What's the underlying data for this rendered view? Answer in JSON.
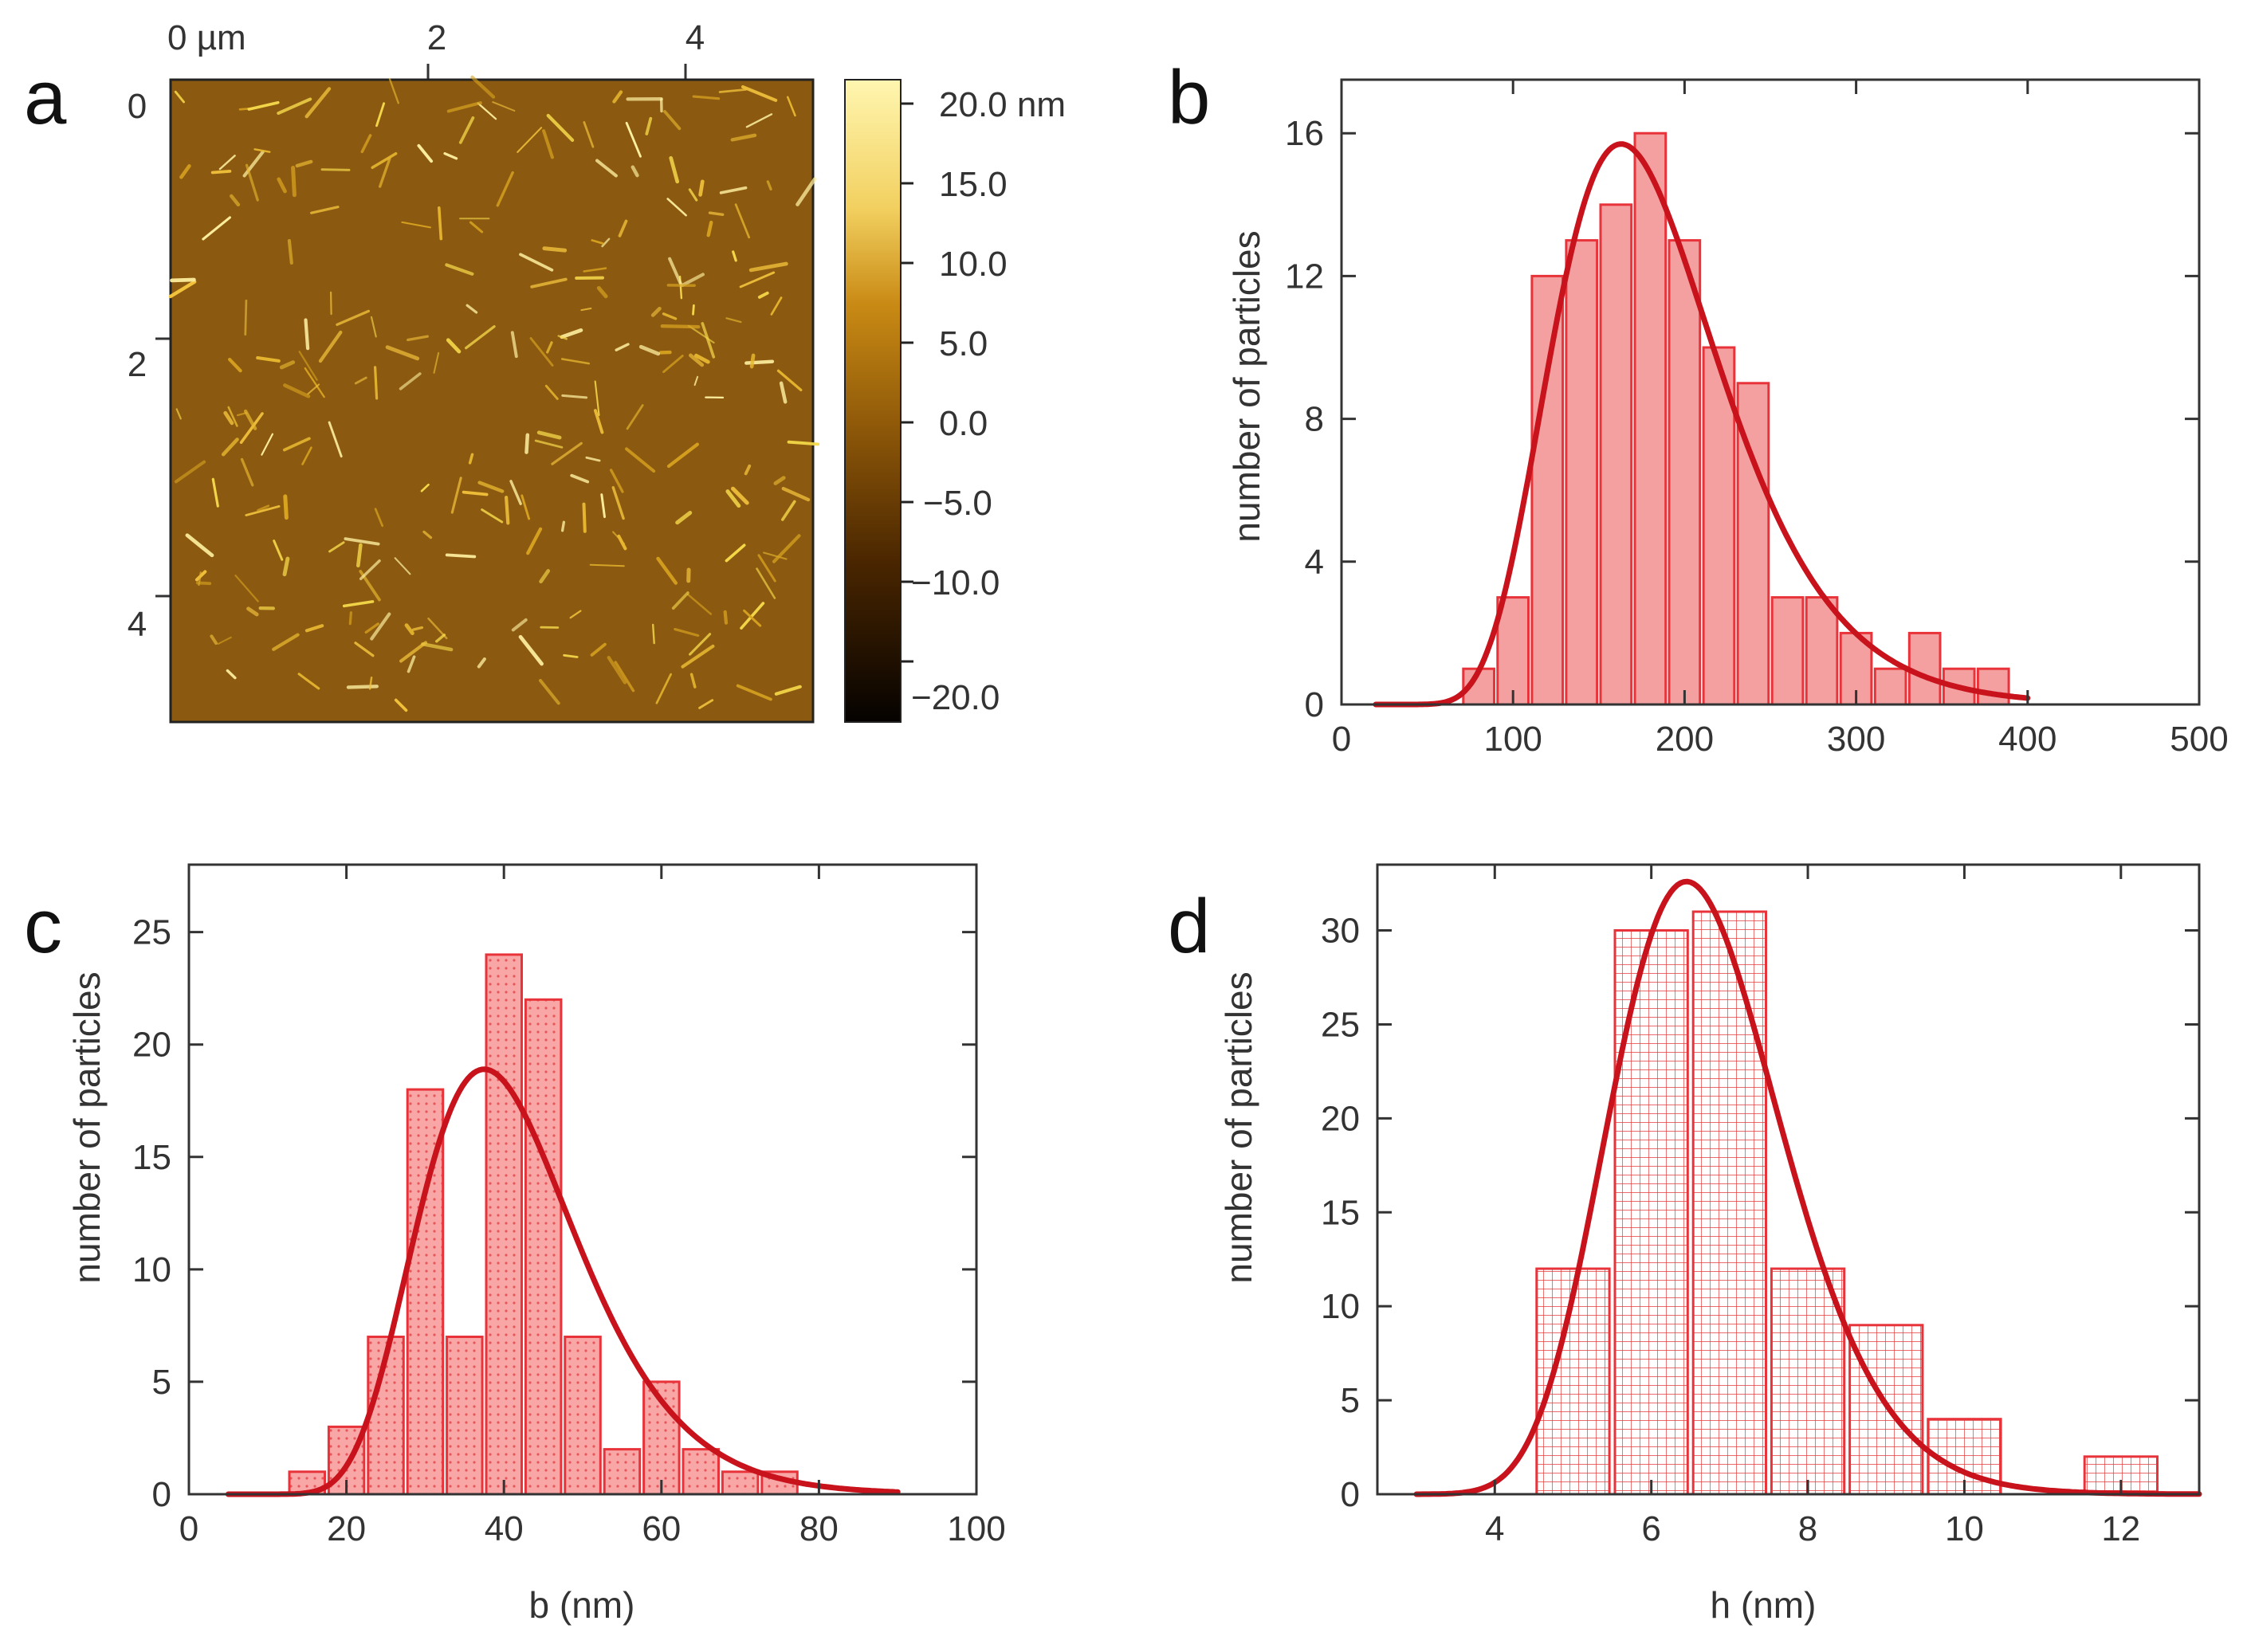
{
  "colors": {
    "bar_fill": "#f4a0a0",
    "bar_stroke": "#e8333a",
    "curve": "#c8121c",
    "grid_line": "#e23a3a",
    "afm_base": "#8b5a10",
    "axis": "#333333"
  },
  "panel_a": {
    "letter": "a",
    "x_ticks": [
      "0 µm",
      "2",
      "4"
    ],
    "y_ticks": [
      "0",
      "2",
      "4"
    ],
    "colorbar_labels": [
      "20.0 nm",
      "15.0",
      "10.0",
      "5.0",
      "0.0",
      "−5.0",
      "−10.0",
      "−20.0"
    ],
    "colorbar_range_nm": [
      -20,
      20
    ],
    "scan_size_um": 5
  },
  "chart_data": [
    {
      "panel": "b",
      "type": "bar",
      "title": "",
      "xlabel": "",
      "ylabel": "number of particles",
      "xlim": [
        0,
        500
      ],
      "ylim": [
        0,
        17.5
      ],
      "x_ticks": [
        0,
        100,
        200,
        300,
        400,
        500
      ],
      "y_ticks": [
        0,
        4,
        8,
        12,
        16
      ],
      "bin_width": 20,
      "bin_centers": [
        80,
        100,
        120,
        140,
        160,
        180,
        200,
        220,
        240,
        260,
        280,
        300,
        320,
        340,
        360,
        380
      ],
      "values": [
        1,
        3,
        12,
        13,
        14,
        16,
        13,
        10,
        9,
        3,
        3,
        2,
        1,
        2,
        1,
        1
      ],
      "fill": "solid",
      "fit": {
        "type": "lognormal",
        "x_range": [
          20,
          400
        ],
        "peak_x": 163,
        "peak_y": 15.7,
        "sigma": 0.3
      }
    },
    {
      "panel": "c",
      "type": "bar",
      "title": "",
      "xlabel": "b (nm)",
      "ylabel": "number of particles",
      "xlim": [
        0,
        100
      ],
      "ylim": [
        0,
        28
      ],
      "x_ticks": [
        0,
        20,
        40,
        60,
        80,
        100
      ],
      "y_ticks": [
        0,
        5,
        10,
        15,
        20,
        25
      ],
      "bin_width": 5,
      "bin_centers": [
        15,
        20,
        25,
        30,
        35,
        40,
        45,
        50,
        55,
        60,
        65,
        70,
        75
      ],
      "values": [
        1,
        3,
        7,
        18,
        7,
        24,
        22,
        7,
        2,
        5,
        2,
        1,
        1
      ],
      "fill": "dotted",
      "fit": {
        "type": "lognormal",
        "x_range": [
          5,
          90
        ],
        "peak_x": 37.5,
        "peak_y": 18.9,
        "sigma": 0.27
      }
    },
    {
      "panel": "d",
      "type": "bar",
      "title": "",
      "xlabel": "h (nm)",
      "ylabel": "number of particles",
      "xlim": [
        2.5,
        13
      ],
      "ylim": [
        0,
        33.5
      ],
      "x_ticks": [
        4,
        6,
        8,
        10,
        12
      ],
      "y_ticks": [
        0,
        5,
        10,
        15,
        20,
        25,
        30
      ],
      "bin_width": 1,
      "bin_centers": [
        5,
        6,
        7,
        8,
        9,
        10,
        12
      ],
      "values": [
        12,
        30,
        31,
        12,
        9,
        4,
        2
      ],
      "fill": "grid",
      "fit": {
        "type": "lognormal",
        "x_range": [
          3,
          13
        ],
        "peak_x": 6.45,
        "peak_y": 32.6,
        "sigma": 0.17
      }
    }
  ]
}
